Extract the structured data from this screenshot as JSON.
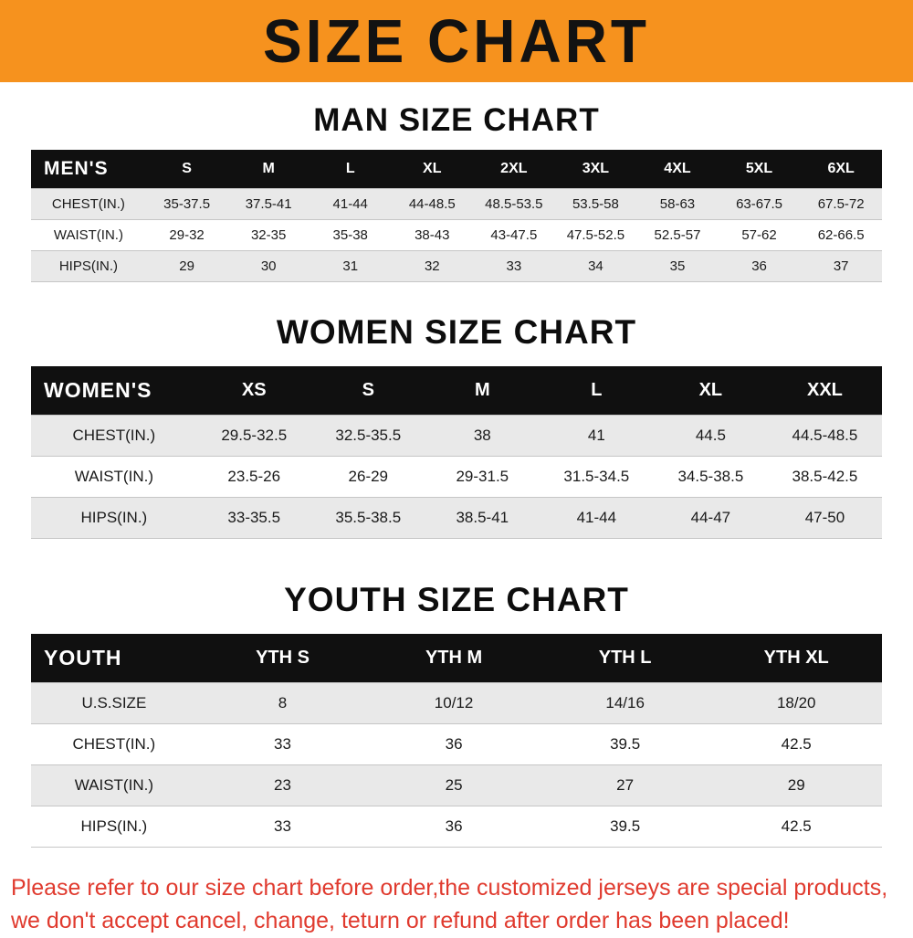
{
  "banner": {
    "title": "SIZE CHART",
    "bg_color": "#F6921E"
  },
  "sections": [
    {
      "id": "man-size-chart",
      "variant": "compact",
      "heading": "MAN SIZE CHART",
      "table": {
        "header_label": "MEN'S",
        "columns": [
          "S",
          "M",
          "L",
          "XL",
          "2XL",
          "3XL",
          "4XL",
          "5XL",
          "6XL"
        ],
        "rows": [
          {
            "label": "CHEST(IN.)",
            "values": [
              "35-37.5",
              "37.5-41",
              "41-44",
              "44-48.5",
              "48.5-53.5",
              "53.5-58",
              "58-63",
              "63-67.5",
              "67.5-72"
            ]
          },
          {
            "label": "WAIST(IN.)",
            "values": [
              "29-32",
              "32-35",
              "35-38",
              "38-43",
              "43-47.5",
              "47.5-52.5",
              "52.5-57",
              "57-62",
              "62-66.5"
            ]
          },
          {
            "label": "HIPS(IN.)",
            "values": [
              "29",
              "30",
              "31",
              "32",
              "33",
              "34",
              "35",
              "36",
              "37"
            ]
          }
        ]
      }
    },
    {
      "id": "women-size-chart",
      "variant": "large",
      "heading": "WOMEN SIZE CHART",
      "table": {
        "header_label": "WOMEN'S",
        "columns": [
          "XS",
          "S",
          "M",
          "L",
          "XL",
          "XXL"
        ],
        "rows": [
          {
            "label": "CHEST(IN.)",
            "values": [
              "29.5-32.5",
              "32.5-35.5",
              "38",
              "41",
              "44.5",
              "44.5-48.5"
            ]
          },
          {
            "label": "WAIST(IN.)",
            "values": [
              "23.5-26",
              "26-29",
              "29-31.5",
              "31.5-34.5",
              "34.5-38.5",
              "38.5-42.5"
            ]
          },
          {
            "label": "HIPS(IN.)",
            "values": [
              "33-35.5",
              "35.5-38.5",
              "38.5-41",
              "41-44",
              "44-47",
              "47-50"
            ]
          }
        ]
      }
    },
    {
      "id": "youth-size-chart",
      "variant": "large",
      "heading": "YOUTH SIZE CHART",
      "table": {
        "header_label": "YOUTH",
        "columns": [
          "YTH S",
          "YTH M",
          "YTH L",
          "YTH XL"
        ],
        "rows": [
          {
            "label": "U.S.SIZE",
            "values": [
              "8",
              "10/12",
              "14/16",
              "18/20"
            ]
          },
          {
            "label": "CHEST(IN.)",
            "values": [
              "33",
              "36",
              "39.5",
              "42.5"
            ]
          },
          {
            "label": "WAIST(IN.)",
            "values": [
              "23",
              "25",
              "27",
              "29"
            ]
          },
          {
            "label": "HIPS(IN.)",
            "values": [
              "33",
              "36",
              "39.5",
              "42.5"
            ]
          }
        ]
      }
    }
  ],
  "footer": {
    "line1": "Please refer to our size chart before order,the customized jerseys are special products,",
    "line2": "we don't accept cancel, change, teturn or refund after order has been placed!",
    "text_color": "#E03A2E"
  }
}
